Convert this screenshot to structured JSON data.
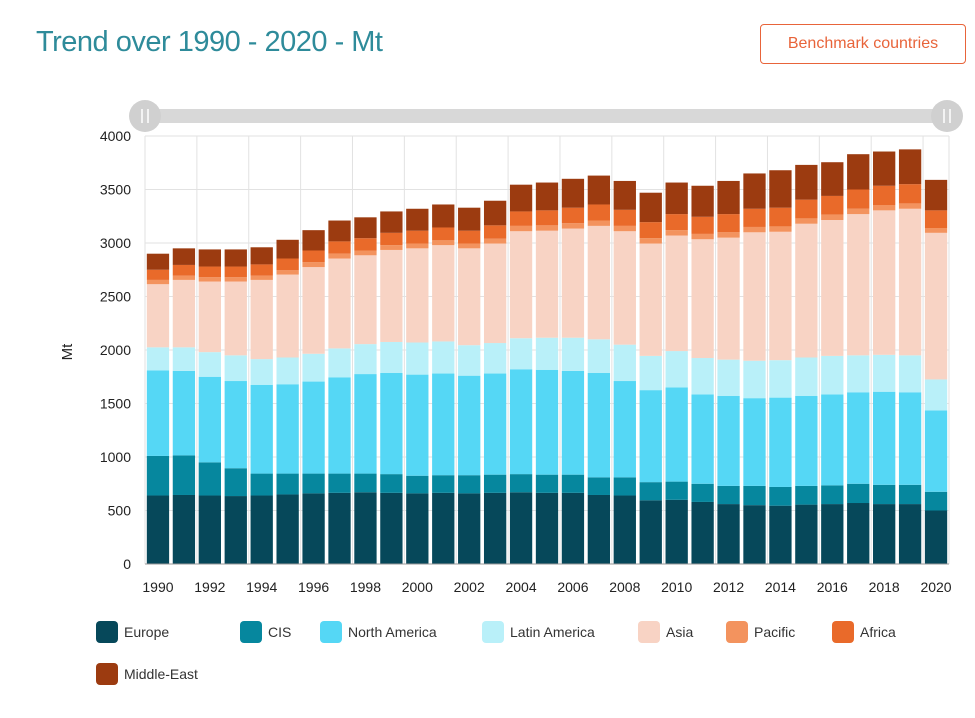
{
  "header": {
    "title": "Trend over 1990 - 2020 - Mt",
    "benchmark_label": "Benchmark countries"
  },
  "chart_data": {
    "type": "bar",
    "stacked": true,
    "ylabel": "Mt",
    "xlabel": "",
    "ylim": [
      0,
      4000
    ],
    "yticks": [
      0,
      500,
      1000,
      1500,
      2000,
      2500,
      3000,
      3500,
      4000
    ],
    "xtick_labels": [
      "1990",
      "1992",
      "1994",
      "1996",
      "1998",
      "2000",
      "2002",
      "2004",
      "2006",
      "2008",
      "2010",
      "2012",
      "2014",
      "2016",
      "2018",
      "2020"
    ],
    "grid": true,
    "legend_position": "bottom",
    "categories": [
      "1990",
      "1991",
      "1992",
      "1993",
      "1994",
      "1995",
      "1996",
      "1997",
      "1998",
      "1999",
      "2000",
      "2001",
      "2002",
      "2003",
      "2004",
      "2005",
      "2006",
      "2007",
      "2008",
      "2009",
      "2010",
      "2011",
      "2012",
      "2013",
      "2014",
      "2015",
      "2016",
      "2017",
      "2018",
      "2019",
      "2020"
    ],
    "series": [
      {
        "name": "Europe",
        "color": "#06485a",
        "values": [
          640,
          645,
          640,
          635,
          640,
          650,
          660,
          665,
          670,
          665,
          660,
          665,
          660,
          665,
          670,
          665,
          665,
          645,
          640,
          595,
          600,
          580,
          560,
          550,
          545,
          555,
          560,
          570,
          560,
          560,
          500
        ]
      },
      {
        "name": "CIS",
        "color": "#06879e",
        "values": [
          370,
          370,
          310,
          260,
          205,
          195,
          185,
          180,
          175,
          175,
          165,
          165,
          170,
          170,
          170,
          170,
          170,
          165,
          170,
          170,
          170,
          170,
          170,
          180,
          175,
          175,
          175,
          180,
          180,
          180,
          175
        ]
      },
      {
        "name": "North America",
        "color": "#55d7f5",
        "values": [
          800,
          790,
          800,
          815,
          830,
          835,
          860,
          900,
          930,
          945,
          945,
          950,
          930,
          945,
          980,
          980,
          970,
          975,
          900,
          860,
          880,
          835,
          840,
          820,
          835,
          840,
          850,
          855,
          870,
          865,
          760
        ]
      },
      {
        "name": "Latin America",
        "color": "#b9f0f9",
        "values": [
          215,
          220,
          230,
          240,
          240,
          250,
          260,
          270,
          280,
          290,
          300,
          300,
          285,
          285,
          290,
          300,
          310,
          315,
          340,
          320,
          340,
          340,
          340,
          350,
          350,
          360,
          360,
          345,
          345,
          345,
          290
        ]
      },
      {
        "name": "Asia",
        "color": "#f8d3c4",
        "values": [
          590,
          630,
          660,
          690,
          740,
          775,
          810,
          840,
          830,
          860,
          880,
          900,
          905,
          930,
          1000,
          1000,
          1020,
          1060,
          1060,
          1050,
          1080,
          1110,
          1140,
          1200,
          1200,
          1250,
          1270,
          1320,
          1350,
          1370,
          1370
        ]
      },
      {
        "name": "Pacific",
        "color": "#f3935e",
        "values": [
          40,
          40,
          40,
          40,
          40,
          40,
          45,
          45,
          45,
          45,
          45,
          45,
          45,
          45,
          50,
          50,
          50,
          50,
          50,
          50,
          50,
          50,
          50,
          50,
          50,
          50,
          50,
          50,
          50,
          50,
          45
        ]
      },
      {
        "name": "Africa",
        "color": "#e96a2a",
        "values": [
          95,
          100,
          100,
          100,
          105,
          110,
          110,
          115,
          115,
          115,
          120,
          120,
          120,
          125,
          135,
          140,
          145,
          150,
          150,
          150,
          150,
          160,
          170,
          170,
          175,
          175,
          175,
          180,
          180,
          180,
          165
        ]
      },
      {
        "name": "Middle-East",
        "color": "#9c3b10",
        "values": [
          150,
          155,
          160,
          160,
          160,
          175,
          190,
          195,
          195,
          200,
          205,
          215,
          215,
          230,
          250,
          260,
          270,
          270,
          270,
          275,
          295,
          290,
          310,
          330,
          350,
          325,
          315,
          330,
          320,
          325,
          285
        ]
      }
    ]
  }
}
